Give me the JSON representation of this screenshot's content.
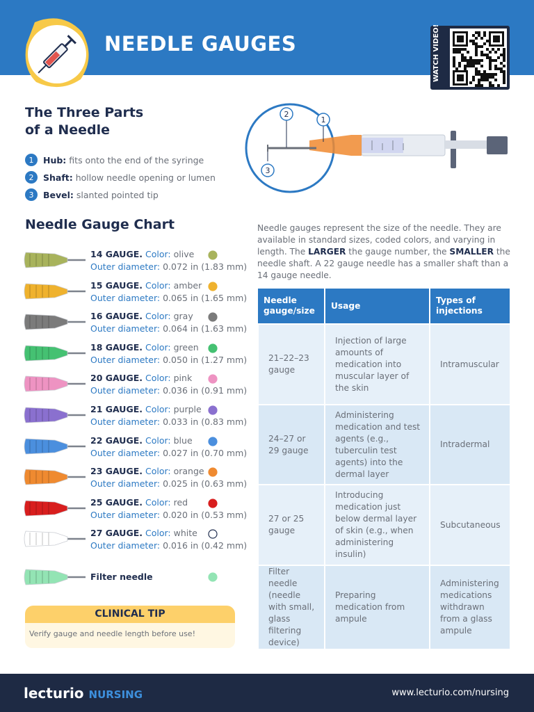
{
  "header": {
    "title": "NEEDLE GAUGES",
    "qr_label": "WATCH VIDEO!"
  },
  "parts": {
    "title": "The Three Parts of a Needle",
    "items": [
      {
        "number": "1",
        "name": "Hub:",
        "text": "fits onto the end of the syringe"
      },
      {
        "number": "2",
        "name": "Shaft:",
        "text": "hollow needle opening or lumen"
      },
      {
        "number": "3",
        "name": "Bevel:",
        "text": "slanted pointed tip"
      }
    ]
  },
  "gauge_chart": {
    "title": "Needle Gauge Chart",
    "color_label": "Color:",
    "diameter_label": "Outer diameter:",
    "items": [
      {
        "gauge": "14 GAUGE.",
        "color": "olive",
        "diameter": "0.072 in (1.83 mm)",
        "hub_color": "#a8b35c"
      },
      {
        "gauge": "15 GAUGE.",
        "color": "amber",
        "diameter": "0.065 in (1.65 mm)",
        "hub_color": "#efb22e"
      },
      {
        "gauge": "16 GAUGE.",
        "color": "gray",
        "diameter": "0.064 in (1.63 mm)",
        "hub_color": "#7b7b7b"
      },
      {
        "gauge": "18 GAUGE.",
        "color": "green",
        "diameter": "0.050 in (1.27 mm)",
        "hub_color": "#45c172"
      },
      {
        "gauge": "20 GAUGE.",
        "color": "pink",
        "diameter": "0.036 in (0.91 mm)",
        "hub_color": "#ee93c2"
      },
      {
        "gauge": "21 GAUGE.",
        "color": "purple",
        "diameter": "0.033 in (0.83 mm)",
        "hub_color": "#8a70cf"
      },
      {
        "gauge": "22 GAUGE.",
        "color": "blue",
        "diameter": "0.027 in (0.70 mm)",
        "hub_color": "#4b8fde"
      },
      {
        "gauge": "23 GAUGE.",
        "color": "orange",
        "diameter": "0.025 in (0.63 mm)",
        "hub_color": "#ef8a30"
      },
      {
        "gauge": "25 GAUGE.",
        "color": "red",
        "diameter": "0.020 in (0.53 mm)",
        "hub_color": "#d81e1e"
      },
      {
        "gauge": "27 GAUGE.",
        "color": "white",
        "diameter": "0.016 in (0.42 mm)",
        "hub_color": "#ffffff"
      }
    ],
    "filter": {
      "label": "Filter needle",
      "hub_color": "#93e4b4"
    }
  },
  "clinical_tip": {
    "title": "CLINICAL TIP",
    "text": "Verify gauge and needle length before use!"
  },
  "intro": {
    "runs": [
      {
        "text": "Needle gauges represent the size of the needle. They are available in standard sizes, coded colors, and varying in length. The ",
        "bold": false
      },
      {
        "text": "LARGER",
        "bold": true
      },
      {
        "text": " the gauge number, the ",
        "bold": false
      },
      {
        "text": "SMALLER",
        "bold": true
      },
      {
        "text": " the needle shaft. A 22 gauge needle has a smaller shaft than a 14 gauge needle.",
        "bold": false
      }
    ]
  },
  "table": {
    "headers": [
      "Needle gauge/size",
      "Usage",
      "Types of injections"
    ],
    "rows": [
      [
        "21–22–23 gauge",
        "Injection of large amounts of medication into muscular layer of the skin",
        "Intramuscular"
      ],
      [
        "24–27 or 29 gauge",
        "Administering medication and test agents (e.g., tuberculin test agents) into the dermal layer",
        "Intradermal"
      ],
      [
        "27 or 25 gauge",
        "Introducing medication just below dermal layer of skin (e.g., when administering insulin)",
        "Subcutaneous"
      ],
      [
        "Filter needle (needle with small, glass filtering device)",
        "Preparing medication from ampule",
        "Administering medications withdrawn from a glass ampule"
      ]
    ]
  },
  "footer": {
    "brand": "lecturio",
    "program": "NURSING",
    "url": "www.lecturio.com/nursing"
  }
}
